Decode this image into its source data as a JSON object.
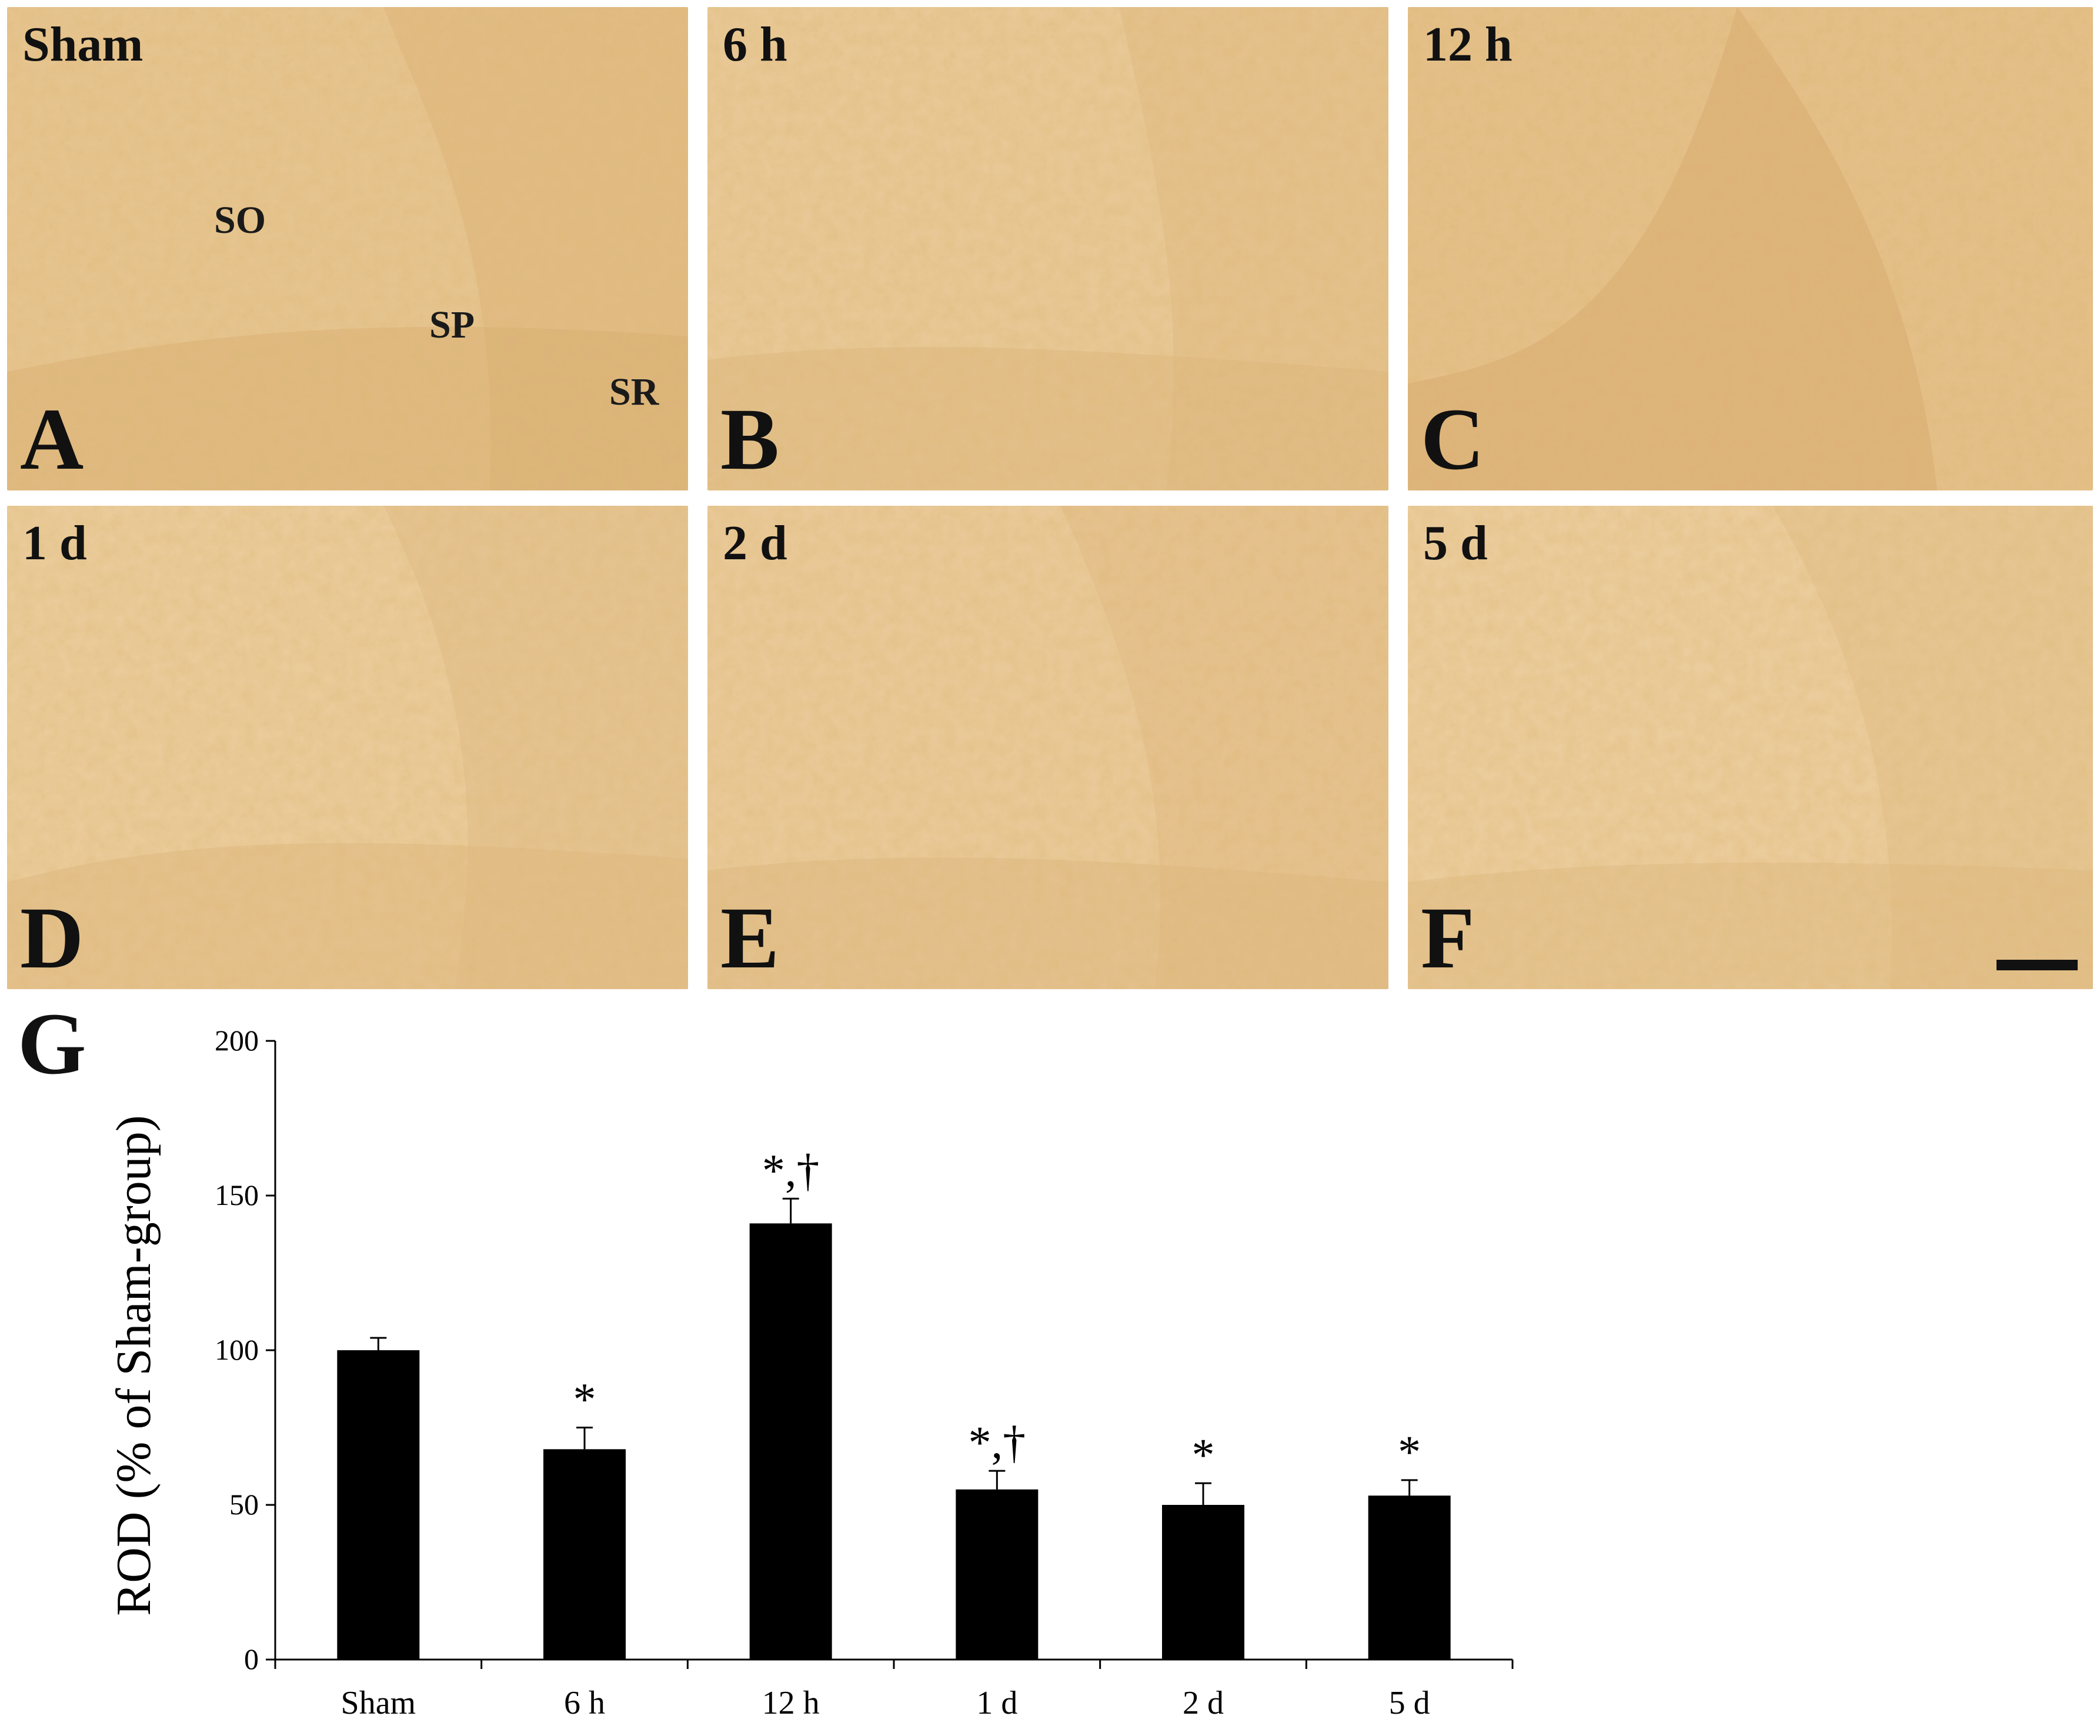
{
  "panels": [
    {
      "title": "Sham",
      "letter": "A",
      "layers": [
        "SO",
        "SP",
        "SR"
      ]
    },
    {
      "title": "6 h",
      "letter": "B"
    },
    {
      "title": "12 h",
      "letter": "C"
    },
    {
      "title": "1 d",
      "letter": "D"
    },
    {
      "title": "2 d",
      "letter": "E"
    },
    {
      "title": "5 d",
      "letter": "F"
    }
  ],
  "colors": {
    "stain": "#e4c08a",
    "bar": "#000000"
  },
  "chart_data": {
    "panel_letter": "G",
    "type": "bar",
    "categories": [
      "Sham",
      "6 h",
      "12 h",
      "1 d",
      "2 d",
      "5 d"
    ],
    "values": [
      100,
      68,
      141,
      55,
      50,
      53
    ],
    "errors": [
      4,
      7,
      8,
      6,
      7,
      5
    ],
    "annotations": [
      "",
      "*",
      "*,†",
      "*,†",
      "*",
      "*"
    ],
    "title": "",
    "xlabel": "",
    "ylabel": "ROD (% of Sham-group)",
    "ylim": [
      0,
      200
    ],
    "yticks": [
      0,
      50,
      100,
      150,
      200
    ],
    "grid": false,
    "legend": "none"
  }
}
